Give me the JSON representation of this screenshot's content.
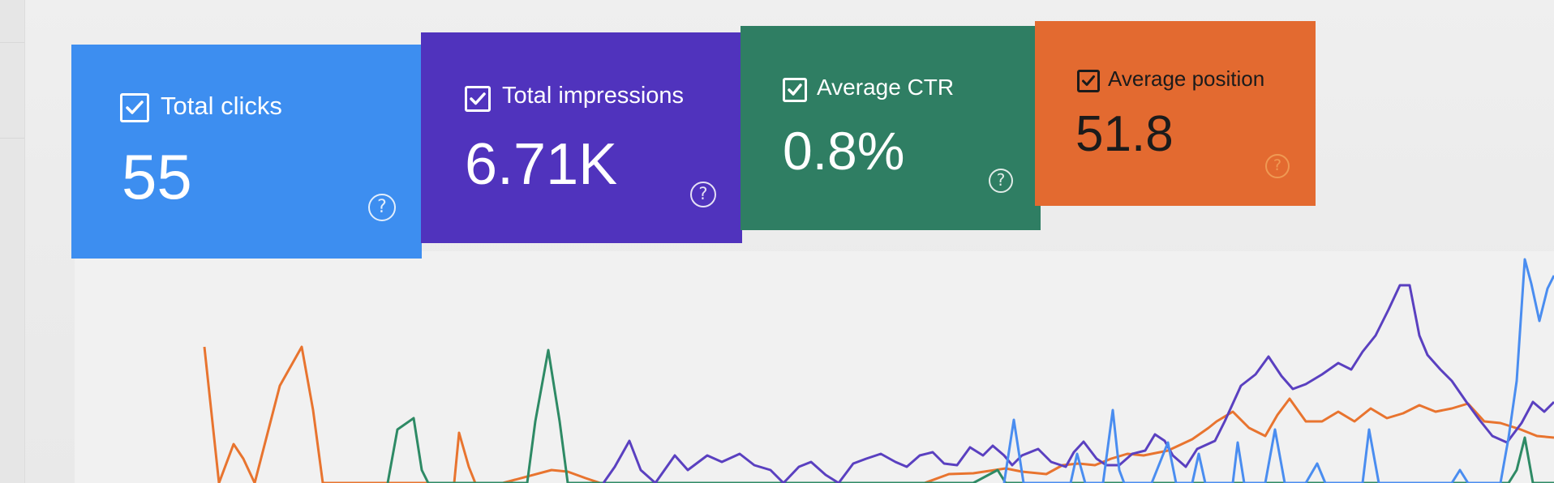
{
  "summary_cards": [
    {
      "id": "clicks",
      "label": "Total clicks",
      "value": "55",
      "checked": true,
      "color": "#3d8ef0"
    },
    {
      "id": "impressions",
      "label": "Total impressions",
      "value": "6.71K",
      "checked": true,
      "color": "#5033bd"
    },
    {
      "id": "ctr",
      "label": "Average CTR",
      "value": "0.8%",
      "checked": true,
      "color": "#2f7e63"
    },
    {
      "id": "position",
      "label": "Average position",
      "value": "51.8",
      "checked": true,
      "color": "#e36a30"
    }
  ],
  "help_icon": "question-circle-icon",
  "chart_colors": {
    "clicks": "#4a8df0",
    "impressions": "#5a40c0",
    "ctr": "#2e8a65",
    "position": "#e8742f"
  }
}
